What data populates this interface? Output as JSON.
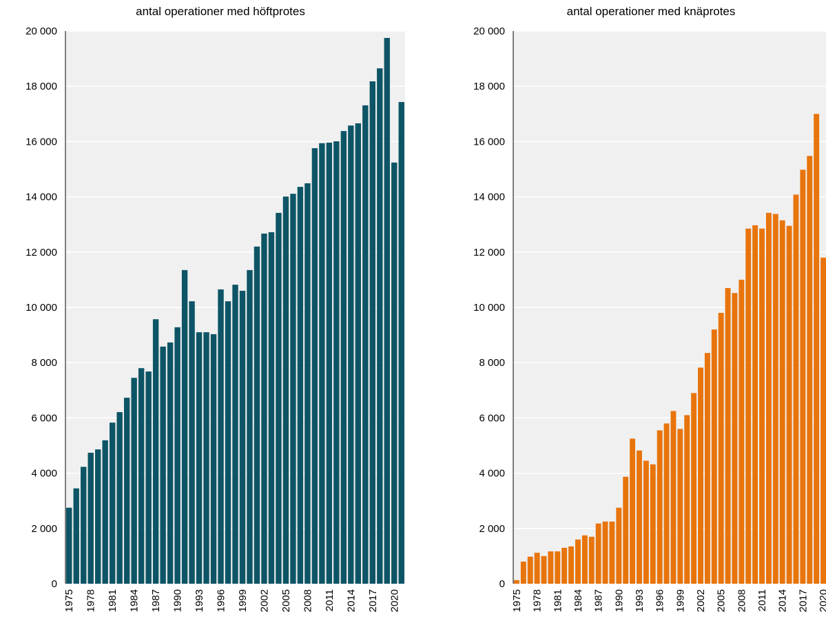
{
  "chart_data": [
    {
      "type": "bar",
      "title": "antal operationer med höftprotes",
      "color": "#0d5566",
      "categories": [
        "1975",
        null,
        null,
        "1978",
        null,
        null,
        "1981",
        null,
        null,
        "1984",
        null,
        null,
        "1987",
        null,
        null,
        "1990",
        null,
        null,
        "1993",
        null,
        null,
        "1996",
        null,
        null,
        "1999",
        null,
        null,
        "2002",
        null,
        null,
        "2005",
        null,
        null,
        "2008",
        null,
        null,
        "2011",
        null,
        null,
        "2014",
        null,
        null,
        "2017",
        null,
        null,
        "2020",
        null
      ],
      "values": [
        2750,
        3450,
        4230,
        4740,
        4860,
        5190,
        5830,
        6210,
        6730,
        7450,
        7800,
        7680,
        9570,
        8580,
        8730,
        9280,
        11350,
        10220,
        9100,
        9100,
        9030,
        10650,
        10220,
        10820,
        10600,
        11350,
        12200,
        12670,
        12720,
        13420,
        14010,
        14110,
        14360,
        14490,
        15760,
        15940,
        15960,
        16010,
        16380,
        16580,
        16660,
        17310,
        18180,
        18650,
        19750,
        15240,
        17430
      ],
      "ylim": [
        0,
        20000
      ],
      "yticks": [
        0,
        {
          "value": 2000,
          "label": "2 000"
        },
        {
          "value": 4000,
          "label": "4 000"
        },
        {
          "value": 6000,
          "label": "6 000"
        },
        {
          "value": 8000,
          "label": "8 000"
        },
        {
          "value": 10000,
          "label": "10 000"
        },
        {
          "value": 12000,
          "label": "12 000"
        },
        {
          "value": 14000,
          "label": "14 000"
        },
        {
          "value": 16000,
          "label": "16 000"
        },
        {
          "value": 18000,
          "label": "18 000"
        },
        {
          "value": 20000,
          "label": "20 000"
        }
      ],
      "grid": true
    },
    {
      "type": "bar",
      "title": "antal operationer med knäprotes",
      "color": "#e8740c",
      "categories": [
        "1975",
        null,
        null,
        "1978",
        null,
        null,
        "1981",
        null,
        null,
        "1984",
        null,
        null,
        "1987",
        null,
        null,
        "1990",
        null,
        null,
        "1993",
        null,
        null,
        "1996",
        null,
        null,
        "1999",
        null,
        null,
        "2002",
        null,
        null,
        "2005",
        null,
        null,
        "2008",
        null,
        null,
        "2011",
        null,
        null,
        "2014",
        null,
        null,
        "2017",
        null,
        null,
        "2020"
      ],
      "values": [
        130,
        800,
        980,
        1120,
        1000,
        1170,
        1170,
        1300,
        1350,
        1600,
        1750,
        1700,
        2180,
        2250,
        2250,
        2750,
        3870,
        5250,
        4820,
        4450,
        4320,
        5550,
        5800,
        6250,
        5600,
        6100,
        6900,
        7820,
        8350,
        9200,
        9800,
        10700,
        10520,
        11000,
        12850,
        12970,
        12850,
        13420,
        13380,
        13150,
        12950,
        14080,
        14980,
        15480,
        17000,
        11800
      ],
      "ylim": [
        0,
        20000
      ],
      "yticks": [
        0,
        {
          "value": 2000,
          "label": "2 000"
        },
        {
          "value": 4000,
          "label": "4 000"
        },
        {
          "value": 6000,
          "label": "6 000"
        },
        {
          "value": 8000,
          "label": "8 000"
        },
        {
          "value": 10000,
          "label": "10 000"
        },
        {
          "value": 12000,
          "label": "12 000"
        },
        {
          "value": 14000,
          "label": "14 000"
        },
        {
          "value": 16000,
          "label": "16 000"
        },
        {
          "value": 18000,
          "label": "18 000"
        },
        {
          "value": 20000,
          "label": "20 000"
        }
      ],
      "grid": true
    }
  ]
}
